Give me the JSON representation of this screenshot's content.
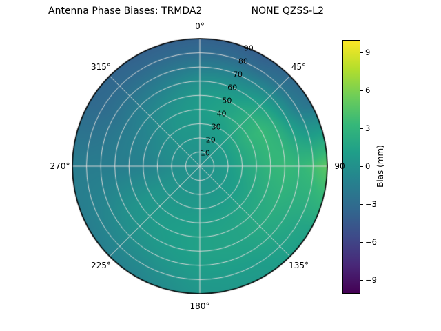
{
  "title": "Antenna Phase Biases: TRMDA2                NONE QZSS-L2",
  "colorbar": {
    "label": "Bias (mm)",
    "ticks": [
      9,
      6,
      3,
      0,
      -3,
      -6,
      -9
    ],
    "vmin": -10,
    "vmax": 10
  },
  "chart_data": {
    "type": "heatmap",
    "projection": "polar",
    "title": "Antenna Phase Biases: TRMDA2                NONE QZSS-L2",
    "value_label": "Bias (mm)",
    "colormap": "viridis",
    "vmin": -10,
    "vmax": 10,
    "grid_color": "#d9d9d9",
    "outline_color": "#000000",
    "viridis_hex": [
      "#440154",
      "#482878",
      "#3e4a89",
      "#31688e",
      "#26828e",
      "#1f9e89",
      "#35b779",
      "#6dcd59",
      "#b4de2c",
      "#fde725"
    ],
    "angular_ticks": [
      {
        "deg": 0,
        "label": "0°"
      },
      {
        "deg": 45,
        "label": "45°"
      },
      {
        "deg": 90,
        "label": "90"
      },
      {
        "deg": 135,
        "label": "135°"
      },
      {
        "deg": 180,
        "label": "180°"
      },
      {
        "deg": 225,
        "label": "225°"
      },
      {
        "deg": 270,
        "label": "270°"
      },
      {
        "deg": 315,
        "label": "315°"
      }
    ],
    "radial_ticks": [
      {
        "zenith_deg": 10,
        "label": "10"
      },
      {
        "zenith_deg": 20,
        "label": "20"
      },
      {
        "zenith_deg": 30,
        "label": "30"
      },
      {
        "zenith_deg": 40,
        "label": "40"
      },
      {
        "zenith_deg": 50,
        "label": "50"
      },
      {
        "zenith_deg": 60,
        "label": "60"
      },
      {
        "zenith_deg": 70,
        "label": "70"
      },
      {
        "zenith_deg": 80,
        "label": "80"
      },
      {
        "zenith_deg": 90,
        "label": "90"
      }
    ],
    "radial_label_angle_deg": 22.5,
    "azimuth_deg": [
      0,
      30,
      60,
      90,
      120,
      150,
      180,
      210,
      240,
      270,
      300,
      330
    ],
    "zenith_deg": [
      0,
      10,
      20,
      30,
      40,
      50,
      60,
      70,
      80,
      90
    ],
    "bias_mm": [
      [
        0.0,
        0.3,
        0.5,
        0.8,
        1.0,
        0.8,
        0.0,
        -1.5,
        -3.0,
        -3.8
      ],
      [
        0.0,
        0.4,
        0.8,
        1.2,
        1.8,
        1.5,
        0.5,
        -1.0,
        -3.0,
        -4.0
      ],
      [
        0.0,
        0.5,
        1.0,
        2.0,
        3.0,
        3.5,
        2.5,
        0.5,
        -1.5,
        -2.5
      ],
      [
        0.0,
        0.5,
        1.0,
        1.8,
        2.5,
        3.2,
        3.5,
        3.2,
        3.8,
        5.0
      ],
      [
        0.0,
        0.4,
        0.8,
        1.2,
        1.8,
        2.2,
        2.5,
        2.2,
        1.8,
        1.5
      ],
      [
        0.0,
        0.3,
        0.6,
        1.0,
        1.4,
        1.6,
        1.6,
        1.4,
        1.0,
        0.8
      ],
      [
        0.0,
        0.3,
        0.5,
        0.8,
        1.2,
        1.4,
        1.4,
        1.2,
        0.8,
        0.5
      ],
      [
        0.0,
        0.2,
        0.4,
        0.6,
        0.9,
        1.0,
        0.8,
        0.3,
        -0.4,
        -1.0
      ],
      [
        0.0,
        0.1,
        0.2,
        0.3,
        0.4,
        0.3,
        0.0,
        -0.5,
        -1.0,
        -1.5
      ],
      [
        0.0,
        0.0,
        -0.3,
        -0.8,
        -1.2,
        -1.4,
        -1.5,
        -1.6,
        -1.6,
        -1.5
      ],
      [
        0.0,
        0.1,
        0.0,
        -0.3,
        -0.8,
        -1.2,
        -1.8,
        -2.5,
        -3.0,
        -3.2
      ],
      [
        0.0,
        0.2,
        0.4,
        0.5,
        0.3,
        -0.3,
        -1.2,
        -2.2,
        -3.2,
        -3.8
      ]
    ],
    "colorbar_label": "Bias (mm)",
    "colorbar_ticks": [
      9,
      6,
      3,
      0,
      -3,
      -6,
      -9
    ],
    "legend_position": "right-colorbar",
    "grid": true
  }
}
